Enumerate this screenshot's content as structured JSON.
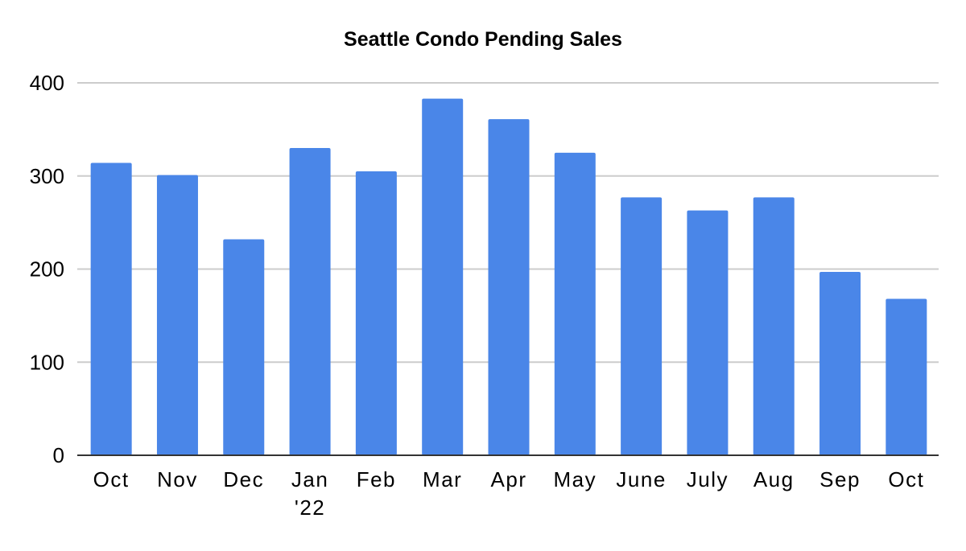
{
  "chart_data": {
    "type": "bar",
    "title": "Seattle Condo Pending Sales",
    "xlabel": "",
    "ylabel": "",
    "categories": [
      "Oct",
      "Nov",
      "Dec",
      "Jan\n'22",
      "Feb",
      "Mar",
      "Apr",
      "May",
      "June",
      "July",
      "Aug",
      "Sep",
      "Oct"
    ],
    "values": [
      314,
      301,
      232,
      330,
      305,
      383,
      361,
      325,
      277,
      263,
      277,
      197,
      168
    ],
    "ylim": [
      0,
      400
    ],
    "yticks": [
      0,
      100,
      200,
      300,
      400
    ],
    "grid": true,
    "legend": "none",
    "colors": {
      "bar": "#4a86e8",
      "grid": "#cccccc",
      "axis": "#333333"
    }
  }
}
